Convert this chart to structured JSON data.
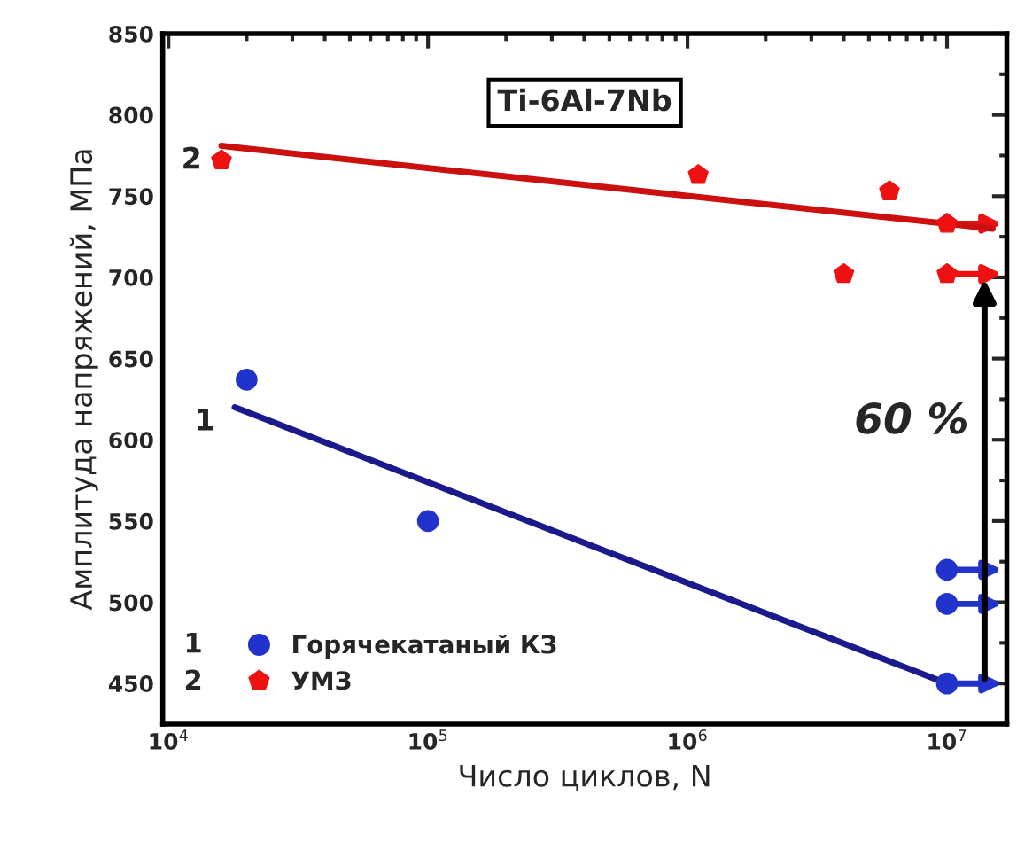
{
  "chart_data": {
    "type": "scatter",
    "xlabel": "Число циклов, N",
    "ylabel": "Амплитуда напряжений, МПа",
    "log": "x",
    "xlim": [
      9500,
      17000000
    ],
    "ylim": [
      425,
      850
    ],
    "xticks": [
      {
        "value": 10000,
        "label": "10$^{4}$"
      },
      {
        "value": 100000,
        "label": "10$^{5}$"
      },
      {
        "value": 1000000,
        "label": "10$^{6}$"
      },
      {
        "value": 10000000,
        "label": "10$^{7}$"
      }
    ],
    "yticks": [
      450,
      500,
      550,
      600,
      650,
      700,
      750,
      800,
      850
    ],
    "grid": false,
    "legend": "bottom left",
    "series": [
      {
        "name": "Горячекатаный КЗ",
        "color": "#2233cc",
        "x": [
          20000,
          100000,
          10000000,
          10000000,
          10000000
        ],
        "values": [
          637,
          550,
          520,
          499,
          450
        ]
      },
      {
        "name": "УМЗ",
        "color": "#ee1111",
        "x": [
          16000,
          1100000,
          6000000,
          4000000,
          10000000,
          10000000
        ],
        "values": [
          772,
          763,
          753,
          702,
          733,
          702
        ]
      },
      {
        "type": "line",
        "color": "#1a1a8c",
        "marker": "none",
        "x": [
          18000,
          10000000
        ],
        "values": [
          620,
          450
        ]
      },
      {
        "type": "line",
        "color": "#cc1010",
        "marker": "none",
        "x": [
          16000,
          15000000
        ],
        "values": [
          781,
          730
        ]
      }
    ],
    "annotations": [
      "1",
      "2",
      "Ti-6Al-7Nb",
      "60 %"
    ]
  }
}
